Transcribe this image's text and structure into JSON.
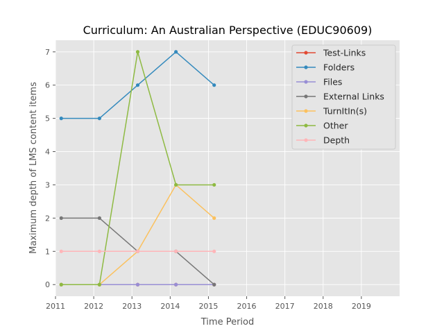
{
  "chart_data": {
    "type": "line",
    "title": "Curriculum: An Australian Perspective (EDUC90609)",
    "xlabel": "Time Period",
    "ylabel": "Maximum depth of LMS content items",
    "xlim": [
      2011,
      2020
    ],
    "ylim": [
      -0.35,
      7.35
    ],
    "x_ticks": [
      2011,
      2012,
      2013,
      2014,
      2015,
      2016,
      2017,
      2018,
      2019
    ],
    "y_ticks": [
      0,
      1,
      2,
      3,
      4,
      5,
      6,
      7
    ],
    "x": [
      2011.15,
      2012.15,
      2013.15,
      2014.15,
      2015.15
    ],
    "grid": true,
    "legend_position": "top-right",
    "series": [
      {
        "name": "Test-Links",
        "color": "#E24A33",
        "values": [
          0,
          0,
          0,
          0,
          0
        ]
      },
      {
        "name": "Folders",
        "color": "#348ABD",
        "values": [
          5,
          5,
          6,
          7,
          6
        ]
      },
      {
        "name": "Files",
        "color": "#988ED5",
        "values": [
          0,
          0,
          0,
          0,
          0
        ]
      },
      {
        "name": "External Links",
        "color": "#777777",
        "values": [
          2,
          2,
          1,
          1,
          0
        ]
      },
      {
        "name": "TurnItIn(s)",
        "color": "#FBC15E",
        "values": [
          0,
          0,
          1,
          3,
          2
        ]
      },
      {
        "name": "Other",
        "color": "#8EBA42",
        "values": [
          0,
          0,
          7,
          3,
          3
        ]
      },
      {
        "name": "Depth",
        "color": "#FFB5B8",
        "values": [
          1,
          1,
          1,
          1,
          1
        ]
      }
    ]
  },
  "colors": {
    "plot_background": "#E5E5E5",
    "grid": "#FFFFFF",
    "legend_background": "#E5E5E5",
    "legend_border": "#CCCCCC"
  }
}
